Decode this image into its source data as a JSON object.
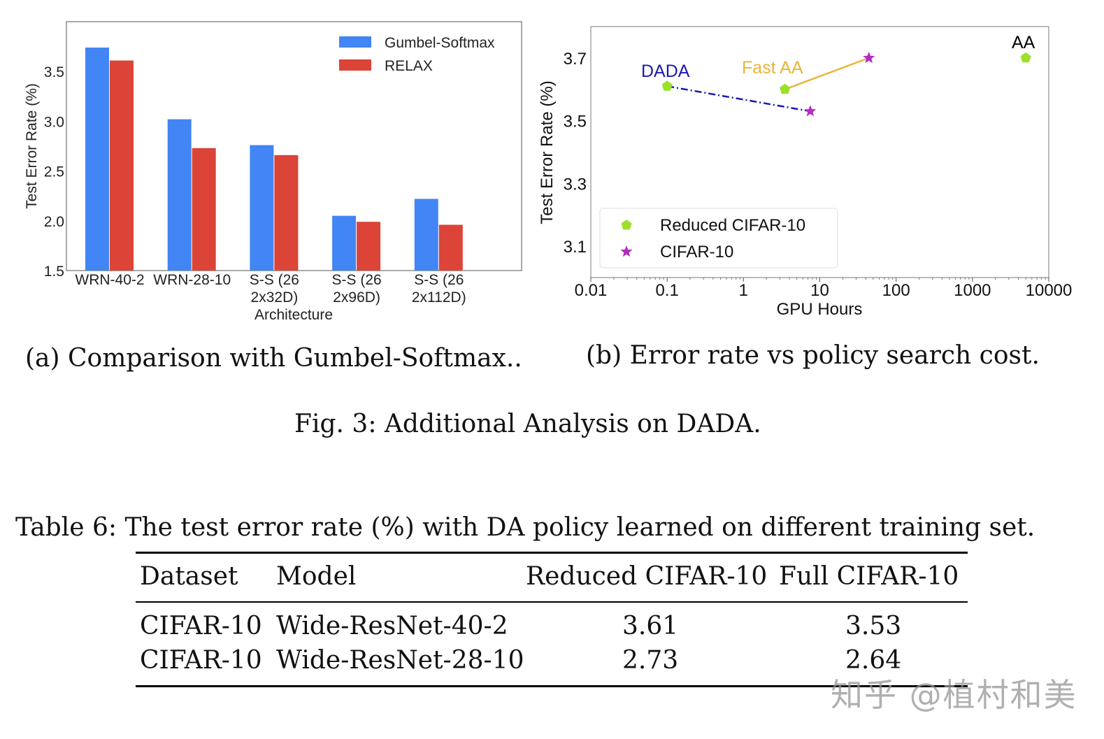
{
  "chart_data": [
    {
      "type": "bar",
      "title": "",
      "xlabel": "Architecture",
      "ylabel": "Test Error Rate (%)",
      "categories": [
        "WRN-40-2",
        "WRN-28-10",
        "S-S (26 2x32D)",
        "S-S (26 2x96D)",
        "S-S (26 2x112D)"
      ],
      "category_lines": [
        [
          "WRN-40-2"
        ],
        [
          "WRN-28-10"
        ],
        [
          "S-S (26",
          "2x32D)"
        ],
        [
          "S-S (26",
          "2x96D)"
        ],
        [
          "S-S (26",
          "2x112D)"
        ]
      ],
      "series": [
        {
          "name": "Gumbel-Softmax",
          "color": "#4285f4",
          "values": [
            3.74,
            3.02,
            2.76,
            2.05,
            2.22
          ]
        },
        {
          "name": "RELAX",
          "color": "#db4437",
          "values": [
            3.61,
            2.73,
            2.66,
            1.99,
            1.96
          ]
        }
      ],
      "ylim": [
        1.5,
        4.0
      ],
      "yticks": [
        "1.5",
        "2.0",
        "2.5",
        "3.0",
        "3.5"
      ],
      "grid": false,
      "legend": "top-right"
    },
    {
      "type": "scatter",
      "title": "",
      "xlabel": "GPU Hours",
      "ylabel": "Test Error Rate (%)",
      "xscale": "log",
      "xlim": [
        0.01,
        10000
      ],
      "ylim": [
        3.0,
        3.8
      ],
      "xticks": [
        "0.01",
        "0.1",
        "1",
        "10",
        "100",
        "1000",
        "10000"
      ],
      "yticks": [
        "3.1",
        "3.3",
        "3.5",
        "3.7"
      ],
      "grid": false,
      "legend": "bottom-left",
      "series": [
        {
          "name": "Reduced CIFAR-10",
          "marker": "pentagon",
          "color": "#9be02a",
          "points": [
            {
              "x": 0.1,
              "y": 3.61
            },
            {
              "x": 3.5,
              "y": 3.6
            },
            {
              "x": 5000,
              "y": 3.7
            }
          ]
        },
        {
          "name": "CIFAR-10",
          "marker": "star",
          "color": "#b52bc0",
          "points": [
            {
              "x": 7.5,
              "y": 3.53
            },
            {
              "x": 44,
              "y": 3.7
            }
          ]
        }
      ],
      "methods": [
        {
          "label": "DADA",
          "color": "#1a1ab0",
          "line": "dashdot",
          "from": {
            "x": 0.1,
            "y": 3.61
          },
          "to": {
            "x": 7.5,
            "y": 3.53
          }
        },
        {
          "label": "Fast AA",
          "color": "#e8b43a",
          "line": "solid",
          "from": {
            "x": 3.5,
            "y": 3.6
          },
          "to": {
            "x": 44,
            "y": 3.7
          }
        },
        {
          "label": "AA",
          "color": "#000000"
        }
      ]
    }
  ],
  "captions": {
    "a": "(a) Comparison with Gumbel-Softmax..",
    "b": "(b) Error rate vs policy search cost.",
    "figure": "Fig. 3: Additional Analysis on DADA."
  },
  "table": {
    "caption": "Table 6: The test error rate (%) with DA policy learned on different training set.",
    "headers": [
      "Dataset",
      "Model",
      "Reduced CIFAR-10",
      "Full CIFAR-10"
    ],
    "rows": [
      [
        "CIFAR-10",
        "Wide-ResNet-40-2",
        "3.61",
        "3.53"
      ],
      [
        "CIFAR-10",
        "Wide-ResNet-28-10",
        "2.73",
        "2.64"
      ]
    ]
  },
  "watermark": "知乎 @植村和美"
}
